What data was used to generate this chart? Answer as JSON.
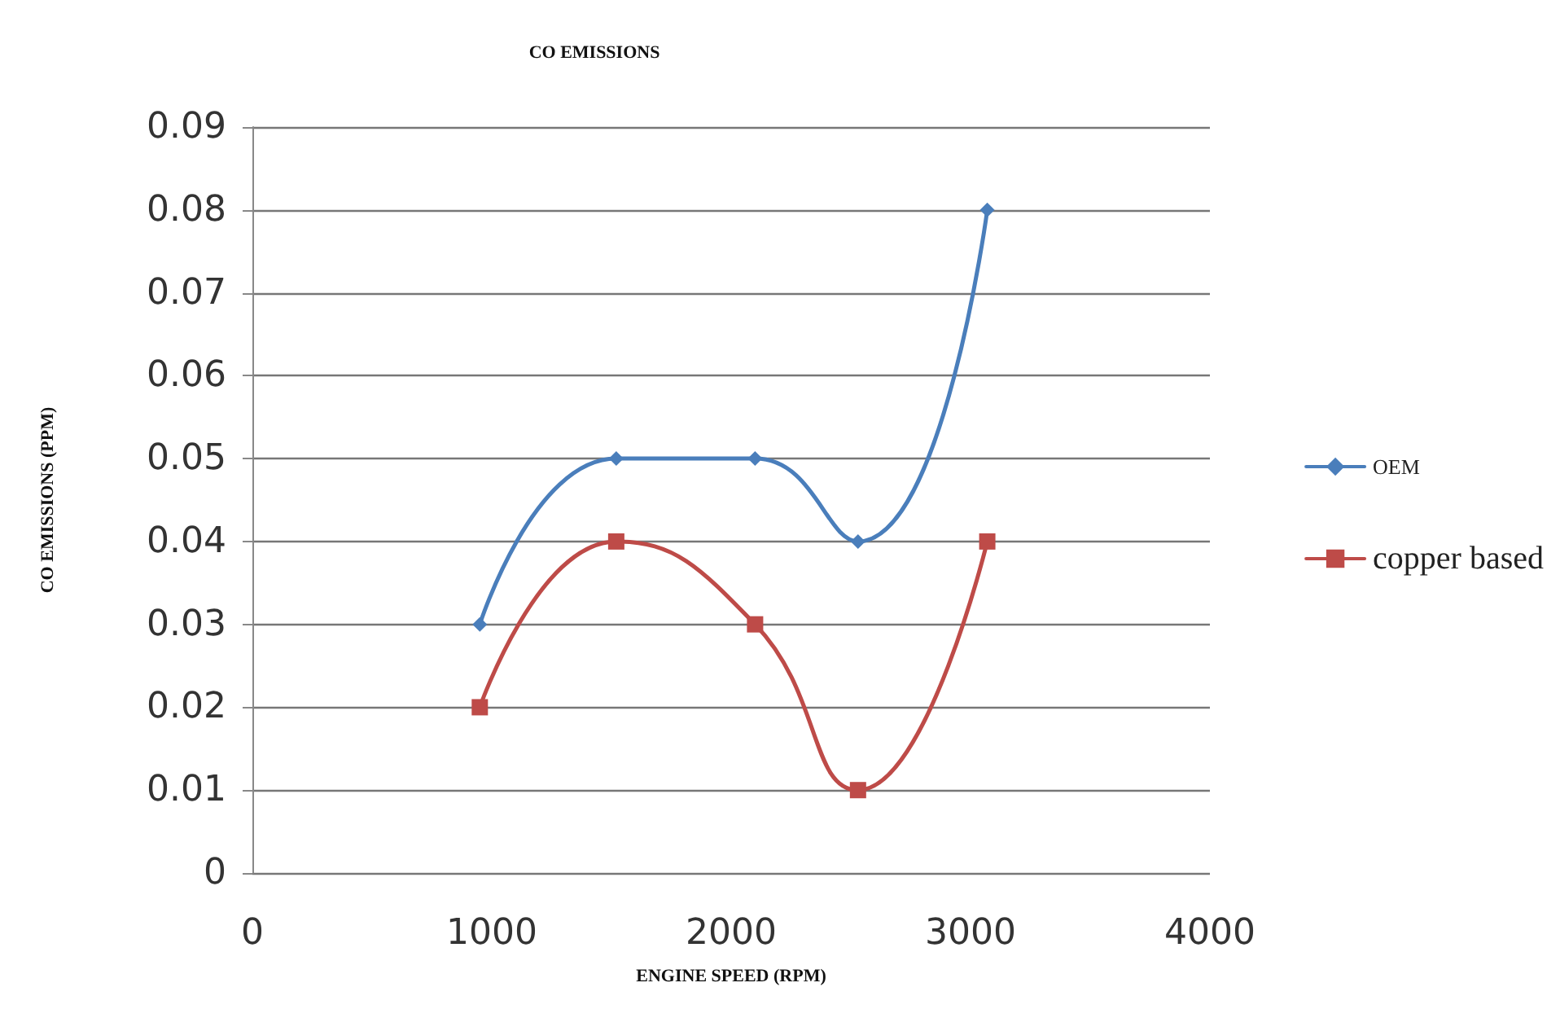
{
  "chart_data": {
    "type": "line",
    "title": "CO EMISSIONS",
    "xlabel": "ENGINE SPEED (RPM)",
    "ylabel": "CO EMISSIONS (PPM)",
    "x": [
      950,
      1520,
      2100,
      2530,
      3070
    ],
    "series": [
      {
        "name": "OEM",
        "color": "#4a7ebb",
        "marker": "diamond",
        "values": [
          0.03,
          0.05,
          0.05,
          0.04,
          0.08
        ]
      },
      {
        "name": "copper based",
        "color": "#be4b48",
        "marker": "square",
        "values": [
          0.02,
          0.04,
          0.03,
          0.01,
          0.04
        ]
      }
    ],
    "xlim": [
      0,
      4000
    ],
    "xticks": [
      0,
      1000,
      2000,
      3000,
      4000
    ],
    "ylim": [
      0,
      0.09
    ],
    "yticks": [
      0,
      0.01,
      0.02,
      0.03,
      0.04,
      0.05,
      0.06,
      0.07,
      0.08,
      0.09
    ],
    "grid": "y",
    "legend": "right",
    "line_style": "solid"
  }
}
